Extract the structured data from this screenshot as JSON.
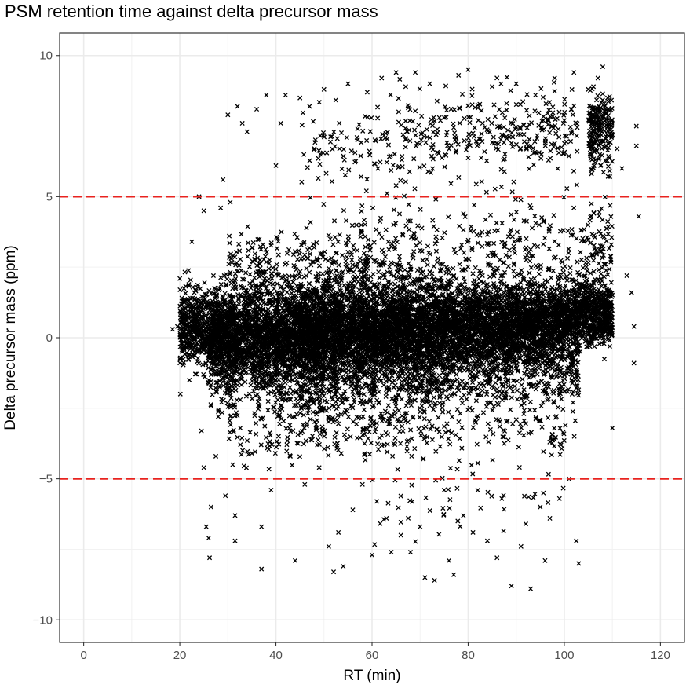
{
  "chart_data": {
    "type": "scatter",
    "title": "PSM retention time against delta precursor mass",
    "xlabel": "RT (min)",
    "ylabel": "Delta precursor mass (ppm)",
    "xlim": [
      -5,
      125
    ],
    "ylim": [
      -10.8,
      10.8
    ],
    "x_ticks": [
      0,
      20,
      40,
      60,
      80,
      100,
      120
    ],
    "y_ticks": [
      -10,
      -5,
      0,
      5,
      10
    ],
    "y_tick_labels": [
      "−10",
      "−5",
      "0",
      "5",
      "10"
    ],
    "grid": true,
    "marker": "x",
    "marker_color": "#000000",
    "reference_lines": [
      {
        "axis": "y",
        "value": 5,
        "style": "dashed",
        "color": "#e8231f"
      },
      {
        "axis": "y",
        "value": -5,
        "style": "dashed",
        "color": "#e8231f"
      }
    ],
    "points": [
      [
        18.5,
        0.3
      ],
      [
        19.5,
        0.4
      ],
      [
        20.5,
        -0.2
      ],
      [
        21.0,
        0.8
      ],
      [
        22.0,
        -1.5
      ],
      [
        22.5,
        3.4
      ],
      [
        23.0,
        1.6
      ],
      [
        24.0,
        5.0
      ],
      [
        24.5,
        -3.3
      ],
      [
        25.0,
        4.5
      ],
      [
        25.0,
        -4.6
      ],
      [
        25.5,
        -6.7
      ],
      [
        26.0,
        -7.1
      ],
      [
        26.2,
        -7.8
      ],
      [
        26.5,
        -6.0
      ],
      [
        27.0,
        2.2
      ],
      [
        27.5,
        -4.2
      ],
      [
        28.0,
        -2.8
      ],
      [
        28.5,
        4.6
      ],
      [
        29.0,
        5.6
      ],
      [
        29.5,
        -5.6
      ],
      [
        30.0,
        7.9
      ],
      [
        30.5,
        4.8
      ],
      [
        31.0,
        -4.5
      ],
      [
        31.5,
        -6.3
      ],
      [
        31.5,
        -7.2
      ],
      [
        32.0,
        8.2
      ],
      [
        33.0,
        7.6
      ],
      [
        34.0,
        7.3
      ],
      [
        35.0,
        -4.1
      ],
      [
        36.0,
        8.1
      ],
      [
        37.0,
        -6.7
      ],
      [
        37.0,
        -8.2
      ],
      [
        38.0,
        8.6
      ],
      [
        39.0,
        -5.4
      ],
      [
        40.0,
        6.1
      ],
      [
        41.0,
        7.6
      ],
      [
        42.0,
        8.6
      ],
      [
        43.0,
        -4.2
      ],
      [
        44.0,
        -7.9
      ],
      [
        45.0,
        8.5
      ],
      [
        46.0,
        -5.2
      ],
      [
        47.0,
        8.2
      ],
      [
        48.0,
        6.7
      ],
      [
        49.0,
        -4.6
      ],
      [
        50.0,
        8.8
      ],
      [
        51.0,
        -7.4
      ],
      [
        52.0,
        -8.3
      ],
      [
        53.0,
        -6.9
      ],
      [
        54.0,
        -8.1
      ],
      [
        55.0,
        9.0
      ],
      [
        56.0,
        -6.1
      ],
      [
        57.0,
        7.4
      ],
      [
        58.0,
        -5.2
      ],
      [
        59.0,
        8.7
      ],
      [
        60.0,
        -7.7
      ],
      [
        61.0,
        -5.8
      ],
      [
        62.0,
        9.2
      ],
      [
        63.0,
        -6.4
      ],
      [
        64.0,
        -7.6
      ],
      [
        65.0,
        9.4
      ],
      [
        66.0,
        -7.0
      ],
      [
        67.0,
        8.9
      ],
      [
        68.0,
        -7.6
      ],
      [
        69.0,
        9.4
      ],
      [
        70.0,
        -6.7
      ],
      [
        71.0,
        -8.5
      ],
      [
        72.0,
        9.0
      ],
      [
        73.0,
        -8.6
      ],
      [
        74.0,
        7.8
      ],
      [
        75.0,
        -5.4
      ],
      [
        76.0,
        -7.9
      ],
      [
        77.0,
        -8.4
      ],
      [
        78.0,
        9.3
      ],
      [
        79.0,
        -6.3
      ],
      [
        80.0,
        9.5
      ],
      [
        81.0,
        -6.9
      ],
      [
        82.0,
        -5.4
      ],
      [
        83.0,
        7.6
      ],
      [
        84.0,
        -7.2
      ],
      [
        85.0,
        8.9
      ],
      [
        86.0,
        -7.8
      ],
      [
        87.0,
        -5.7
      ],
      [
        88.0,
        8.3
      ],
      [
        89.0,
        -8.8
      ],
      [
        90.0,
        9.0
      ],
      [
        91.0,
        -7.4
      ],
      [
        92.0,
        -6.6
      ],
      [
        93.0,
        -8.9
      ],
      [
        94.0,
        8.6
      ],
      [
        95.0,
        -6.0
      ],
      [
        96.0,
        -7.9
      ],
      [
        97.0,
        -6.4
      ],
      [
        98.0,
        9.2
      ],
      [
        99.0,
        -5.7
      ],
      [
        100.0,
        7.7
      ],
      [
        101.0,
        -5.0
      ],
      [
        102.0,
        9.4
      ],
      [
        102.5,
        -7.2
      ],
      [
        103.0,
        -8.0
      ],
      [
        104.0,
        1.6
      ],
      [
        105.0,
        8.8
      ],
      [
        106.0,
        8.1
      ],
      [
        107.0,
        9.2
      ],
      [
        108.0,
        9.6
      ],
      [
        109.0,
        8.5
      ],
      [
        110.0,
        -3.2
      ],
      [
        111.0,
        6.7
      ],
      [
        112.0,
        6.0
      ],
      [
        113.0,
        2.2
      ],
      [
        114.0,
        1.6
      ],
      [
        114.5,
        0.4
      ],
      [
        114.5,
        -0.9
      ],
      [
        115.0,
        7.5
      ],
      [
        115.0,
        6.8
      ],
      [
        115.5,
        4.3
      ]
    ],
    "series": [
      {
        "points": [
          [
            45,
            0.3
          ],
          [
            75,
            0.6
          ]
        ],
        "density": [
          {
            "x": [
              20,
              30
            ],
            "y_center": 0.3,
            "y_spread": 1.1,
            "weight": 16
          },
          {
            "x": [
              26,
              32
            ],
            "y_center": -0.5,
            "y_spread": 1.8,
            "weight": 7
          },
          {
            "x": [
              30,
              45
            ],
            "y_center": 0.0,
            "y_spread": 1.4,
            "weight": 28
          },
          {
            "x": [
              35,
              50
            ],
            "y_center": -0.6,
            "y_spread": 2.0,
            "weight": 12
          },
          {
            "x": [
              45,
              60
            ],
            "y_center": 0.4,
            "y_spread": 1.3,
            "weight": 30
          },
          {
            "x": [
              45,
              60
            ],
            "y_center": -1.0,
            "y_spread": 1.8,
            "weight": 14
          },
          {
            "x": [
              60,
              75
            ],
            "y_center": 0.4,
            "y_spread": 1.3,
            "weight": 30
          },
          {
            "x": [
              60,
              75
            ],
            "y_center": -1.0,
            "y_spread": 1.8,
            "weight": 14
          },
          {
            "x": [
              75,
              90
            ],
            "y_center": 0.5,
            "y_spread": 1.2,
            "weight": 28
          },
          {
            "x": [
              75,
              90
            ],
            "y_center": -0.8,
            "y_spread": 1.6,
            "weight": 10
          },
          {
            "x": [
              90,
              103
            ],
            "y_center": 0.6,
            "y_spread": 1.1,
            "weight": 24
          },
          {
            "x": [
              90,
              103
            ],
            "y_center": -0.9,
            "y_spread": 1.7,
            "weight": 8
          },
          {
            "x": [
              103,
              110
            ],
            "y_center": 0.9,
            "y_spread": 0.9,
            "weight": 12
          },
          {
            "x": [
              30,
              60
            ],
            "y_center": 2.5,
            "y_spread": 1.2,
            "weight": 6
          },
          {
            "x": [
              55,
              103
            ],
            "y_center": 3.0,
            "y_spread": 1.4,
            "weight": 8
          },
          {
            "x": [
              65,
              103
            ],
            "y_center": 7.2,
            "y_spread": 1.2,
            "weight": 7
          },
          {
            "x": [
              45,
              65
            ],
            "y_center": 6.6,
            "y_spread": 1.5,
            "weight": 2
          },
          {
            "x": [
              105,
              110
            ],
            "y_center": 7.3,
            "y_spread": 1.1,
            "weight": 5
          },
          {
            "x": [
              103,
              110
            ],
            "y_center": 3.2,
            "y_spread": 1.2,
            "weight": 2
          },
          {
            "x": [
              30,
              100
            ],
            "y_center": -3.5,
            "y_spread": 0.8,
            "weight": 4
          },
          {
            "x": [
              60,
              100
            ],
            "y_center": -5.8,
            "y_spread": 1.1,
            "weight": 1
          }
        ]
      }
    ]
  }
}
